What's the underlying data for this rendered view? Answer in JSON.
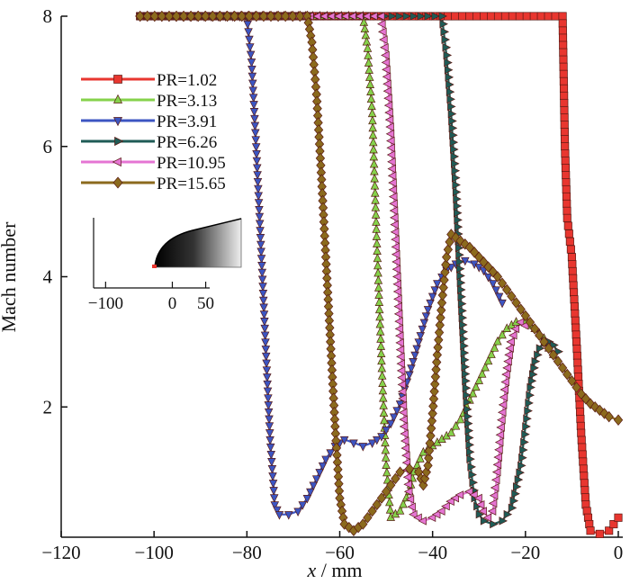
{
  "chart_data": {
    "type": "line",
    "xlabel_italic": "x",
    "xlabel_rest": " / mm",
    "ylabel": "Mach number",
    "xlim": [
      -120,
      0
    ],
    "ylim": [
      0,
      8
    ],
    "xticks": [
      -120,
      -100,
      -80,
      -60,
      -40,
      -20,
      0
    ],
    "xtick_labels": [
      "−120",
      "−100",
      "−80",
      "−60",
      "−40",
      "−20",
      "0"
    ],
    "yticks": [
      2,
      4,
      6,
      8
    ],
    "ytick_labels": [
      "2",
      "4",
      "6",
      "8"
    ],
    "grid": false,
    "legend_position": "upper-left",
    "series": [
      {
        "name": "PR=1.02",
        "color": "#e8362f",
        "marker": "square",
        "points": [
          [
            -103,
            8
          ],
          [
            -12,
            8
          ],
          [
            -11.5,
            6
          ],
          [
            -11,
            4.9
          ],
          [
            -10,
            4.3
          ],
          [
            -9,
            3
          ],
          [
            -8,
            1.6
          ],
          [
            -7,
            0.5
          ],
          [
            -6,
            0.1
          ],
          [
            -4,
            0.05
          ],
          [
            -2,
            0.1
          ],
          [
            -1,
            0.2
          ],
          [
            0,
            0.3
          ]
        ]
      },
      {
        "name": "PR=3.13",
        "color": "#85d24b",
        "marker": "triangle-up",
        "points": [
          [
            -103,
            8
          ],
          [
            -55,
            8
          ],
          [
            -54,
            7.5
          ],
          [
            -53,
            6.5
          ],
          [
            -52,
            4.5
          ],
          [
            -51,
            2.7
          ],
          [
            -50,
            1.1
          ],
          [
            -49,
            0.3
          ],
          [
            -47,
            0.4
          ],
          [
            -45,
            0.7
          ],
          [
            -44,
            1.0
          ],
          [
            -42,
            1.3
          ],
          [
            -40,
            1.4
          ],
          [
            -38,
            1.5
          ],
          [
            -36,
            1.6
          ],
          [
            -34,
            1.8
          ],
          [
            -32,
            2.1
          ],
          [
            -30,
            2.4
          ],
          [
            -28,
            2.7
          ],
          [
            -26,
            3.0
          ],
          [
            -24,
            3.2
          ],
          [
            -22,
            3.3
          ],
          [
            -20,
            3.3
          ],
          [
            -18,
            3.2
          ],
          [
            -16,
            3.05
          ],
          [
            -15,
            2.9
          ],
          [
            -14,
            2.8
          ]
        ]
      },
      {
        "name": "PR=3.91",
        "color": "#3c55c2",
        "marker": "triangle-down",
        "points": [
          [
            -103,
            8
          ],
          [
            -80,
            8
          ],
          [
            -79,
            7.3
          ],
          [
            -78,
            6
          ],
          [
            -77,
            4.5
          ],
          [
            -76,
            3
          ],
          [
            -75,
            1.5
          ],
          [
            -74,
            0.5
          ],
          [
            -73,
            0.35
          ],
          [
            -71,
            0.35
          ],
          [
            -69,
            0.4
          ],
          [
            -67,
            0.6
          ],
          [
            -65,
            0.9
          ],
          [
            -63,
            1.2
          ],
          [
            -61,
            1.4
          ],
          [
            -59,
            1.5
          ],
          [
            -57,
            1.45
          ],
          [
            -55,
            1.4
          ],
          [
            -53,
            1.45
          ],
          [
            -51,
            1.55
          ],
          [
            -49,
            1.75
          ],
          [
            -47,
            2.05
          ],
          [
            -45,
            2.5
          ],
          [
            -43,
            3.0
          ],
          [
            -41,
            3.5
          ],
          [
            -39,
            3.9
          ],
          [
            -37,
            4.1
          ],
          [
            -35,
            4.2
          ],
          [
            -33,
            4.25
          ],
          [
            -31,
            4.2
          ],
          [
            -29,
            4.1
          ],
          [
            -27,
            3.9
          ],
          [
            -25,
            3.6
          ]
        ]
      },
      {
        "name": "PR=6.26",
        "color": "#1f5b56",
        "marker": "triangle-right",
        "points": [
          [
            -103,
            8
          ],
          [
            -38,
            8
          ],
          [
            -37,
            7.4
          ],
          [
            -36,
            6.5
          ],
          [
            -35,
            5.3
          ],
          [
            -34,
            3.8
          ],
          [
            -33,
            2.4
          ],
          [
            -32,
            1.2
          ],
          [
            -31,
            0.6
          ],
          [
            -30,
            0.35
          ],
          [
            -29,
            0.25
          ],
          [
            -27,
            0.2
          ],
          [
            -25,
            0.25
          ],
          [
            -23,
            0.45
          ],
          [
            -21,
            1.1
          ],
          [
            -20,
            1.7
          ],
          [
            -19,
            2.3
          ],
          [
            -18,
            2.7
          ],
          [
            -17,
            2.9
          ],
          [
            -16,
            3.0
          ],
          [
            -15,
            3.0
          ],
          [
            -14,
            2.95
          ],
          [
            -13,
            2.85
          ]
        ]
      },
      {
        "name": "PR=10.95",
        "color": "#e575d3",
        "marker": "triangle-left",
        "points": [
          [
            -103,
            8
          ],
          [
            -51,
            8
          ],
          [
            -50,
            7.4
          ],
          [
            -49,
            6.3
          ],
          [
            -48,
            4.8
          ],
          [
            -47,
            3.2
          ],
          [
            -46,
            1.7
          ],
          [
            -45,
            0.7
          ],
          [
            -44,
            0.35
          ],
          [
            -42,
            0.25
          ],
          [
            -40,
            0.3
          ],
          [
            -38,
            0.4
          ],
          [
            -36,
            0.55
          ],
          [
            -34,
            0.65
          ],
          [
            -32,
            0.7
          ],
          [
            -30,
            0.6
          ],
          [
            -29,
            0.4
          ],
          [
            -28,
            0.3
          ],
          [
            -27,
            0.4
          ],
          [
            -26,
            1.0
          ],
          [
            -25,
            1.8
          ],
          [
            -24,
            2.5
          ],
          [
            -23,
            3.0
          ],
          [
            -22,
            3.2
          ],
          [
            -21,
            3.3
          ],
          [
            -20,
            3.25
          ]
        ]
      },
      {
        "name": "PR=15.65",
        "color": "#8b6a1d",
        "marker": "diamond",
        "points": [
          [
            -103,
            8
          ],
          [
            -67,
            8
          ],
          [
            -66,
            7.6
          ],
          [
            -65,
            6.8
          ],
          [
            -64,
            5.6
          ],
          [
            -63,
            4.3
          ],
          [
            -62,
            3.0
          ],
          [
            -61,
            1.7
          ],
          [
            -60,
            0.6
          ],
          [
            -59,
            0.2
          ],
          [
            -57,
            0.1
          ],
          [
            -55,
            0.2
          ],
          [
            -53,
            0.4
          ],
          [
            -51,
            0.6
          ],
          [
            -49,
            0.8
          ],
          [
            -47,
            1.0
          ],
          [
            -45,
            1.05
          ],
          [
            -43,
            1.0
          ],
          [
            -42,
            0.8
          ],
          [
            -41,
            1.1
          ],
          [
            -40,
            1.9
          ],
          [
            -39,
            2.8
          ],
          [
            -38,
            3.6
          ],
          [
            -37,
            4.3
          ],
          [
            -36,
            4.65
          ],
          [
            -34,
            4.55
          ],
          [
            -32,
            4.45
          ],
          [
            -30,
            4.3
          ],
          [
            -28,
            4.15
          ],
          [
            -26,
            4.0
          ],
          [
            -24,
            3.8
          ],
          [
            -22,
            3.6
          ],
          [
            -20,
            3.4
          ],
          [
            -18,
            3.2
          ],
          [
            -16,
            3.0
          ],
          [
            -14,
            2.8
          ],
          [
            -12,
            2.6
          ],
          [
            -10,
            2.4
          ],
          [
            -8,
            2.2
          ],
          [
            -6,
            2.05
          ],
          [
            -4,
            1.95
          ],
          [
            -2,
            1.85
          ],
          [
            0,
            1.8
          ]
        ]
      }
    ],
    "inset": {
      "xticks": [
        -100,
        0,
        50
      ],
      "xtick_labels": [
        "−100",
        "0",
        "50"
      ]
    }
  }
}
